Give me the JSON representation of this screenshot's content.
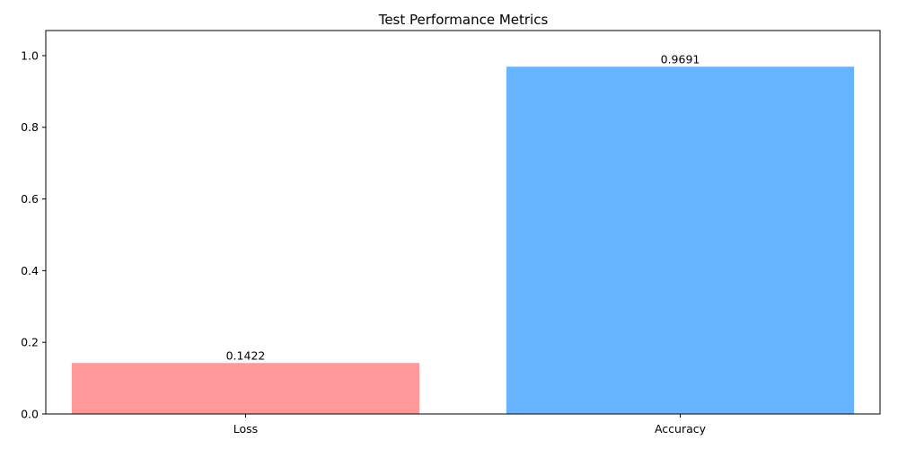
{
  "chart_data": {
    "type": "bar",
    "title": "Test Performance Metrics",
    "xlabel": "",
    "ylabel": "",
    "categories": [
      "Loss",
      "Accuracy"
    ],
    "values": [
      0.1422,
      0.9691
    ],
    "value_labels": [
      "0.1422",
      "0.9691"
    ],
    "colors": [
      "#ff9999",
      "#66b3ff"
    ],
    "ylim": [
      0,
      1.07
    ],
    "yticks": [
      0.0,
      0.2,
      0.4,
      0.6,
      0.8,
      1.0
    ],
    "ytick_labels": [
      "0.0",
      "0.2",
      "0.4",
      "0.6",
      "0.8",
      "1.0"
    ],
    "grid": false,
    "legend": "none"
  }
}
